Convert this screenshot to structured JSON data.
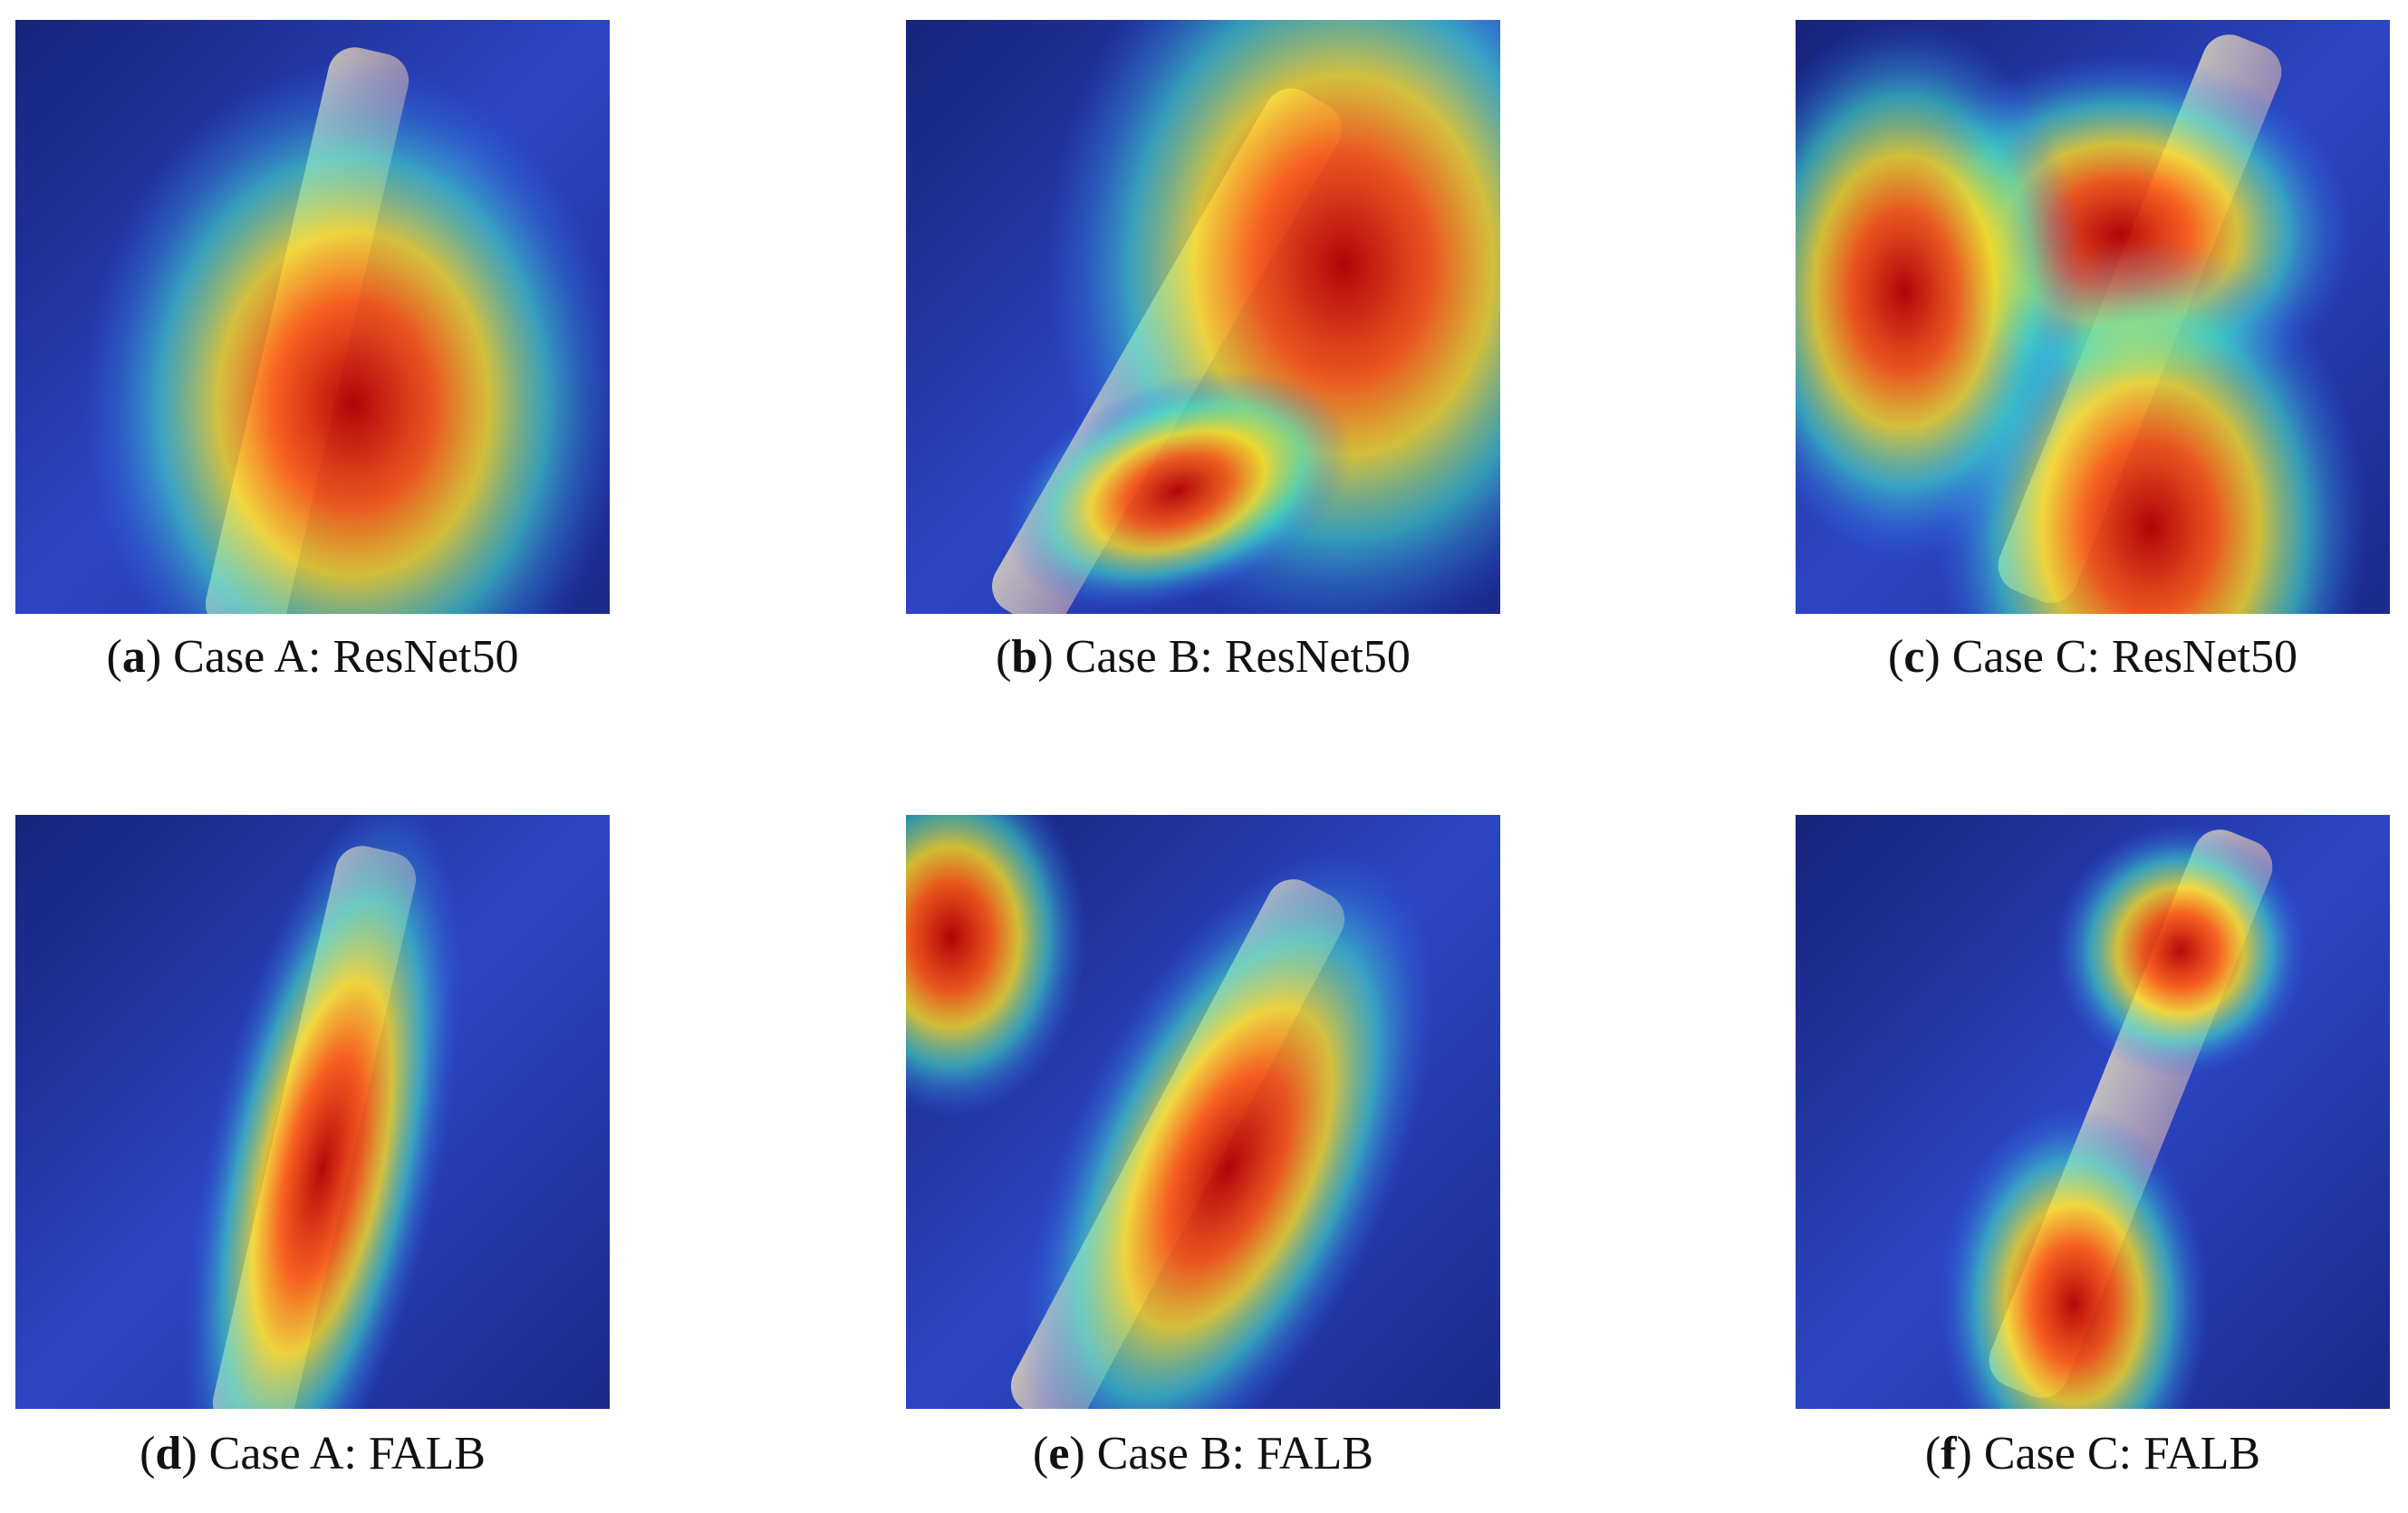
{
  "panels": [
    {
      "caption": [
        "(",
        "a",
        ") Case A: ResNet50"
      ]
    },
    {
      "caption": [
        "(",
        "b",
        ") Case B: ResNet50"
      ]
    },
    {
      "caption": [
        "(",
        "c",
        ") Case C: ResNet50"
      ]
    },
    {
      "caption": [
        "(",
        "d",
        ") Case A: FALB"
      ]
    },
    {
      "caption": [
        "(",
        "e",
        ") Case B: FALB"
      ]
    },
    {
      "caption": [
        "(",
        "f",
        ") Case C: FALB"
      ]
    }
  ]
}
